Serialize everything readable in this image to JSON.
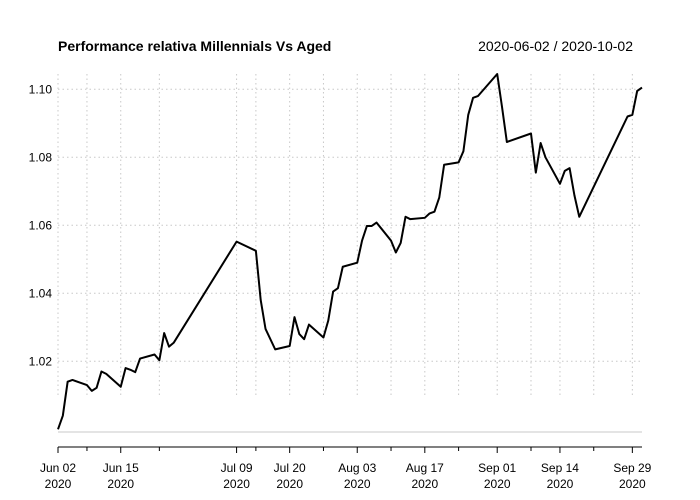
{
  "chart_data": {
    "type": "line",
    "title": "Performance relativa Millennials Vs Aged",
    "date_range": "2020-06-02 / 2020-10-02",
    "ylim": [
      0.9992,
      1.1045
    ],
    "y_ticks": [
      "1.02",
      "1.04",
      "1.06",
      "1.08",
      "1.10"
    ],
    "y_tick_values": [
      1.02,
      1.04,
      1.06,
      1.08,
      1.1
    ],
    "x_ticks": [
      {
        "date": "2020-06-02",
        "label": "Jun 02",
        "year": "2020"
      },
      {
        "date": "2020-06-15",
        "label": "Jun 15",
        "year": "2020"
      },
      {
        "date": "2020-07-09",
        "label": "Jul 09",
        "year": "2020"
      },
      {
        "date": "2020-07-20",
        "label": "Jul 20",
        "year": "2020"
      },
      {
        "date": "2020-08-03",
        "label": "Aug 03",
        "year": "2020"
      },
      {
        "date": "2020-08-17",
        "label": "Aug 17",
        "year": "2020"
      },
      {
        "date": "2020-09-01",
        "label": "Sep 01",
        "year": "2020"
      },
      {
        "date": "2020-09-14",
        "label": "Sep 14",
        "year": "2020"
      },
      {
        "date": "2020-09-29",
        "label": "Sep 29",
        "year": "2020"
      }
    ],
    "x_minor_ticks": [
      "2020-06-08",
      "2020-06-23",
      "2020-07-13",
      "2020-07-27",
      "2020-08-10",
      "2020-08-24",
      "2020-09-08",
      "2020-09-21"
    ],
    "grid": true,
    "series": [
      {
        "color": "#000000",
        "points": [
          [
            "2020-06-02",
            1.0
          ],
          [
            "2020-06-03",
            1.004
          ],
          [
            "2020-06-04",
            1.014
          ],
          [
            "2020-06-05",
            1.0145
          ],
          [
            "2020-06-08",
            1.013
          ],
          [
            "2020-06-09",
            1.0113
          ],
          [
            "2020-06-10",
            1.0122
          ],
          [
            "2020-06-11",
            1.017
          ],
          [
            "2020-06-12",
            1.0163
          ],
          [
            "2020-06-15",
            1.0125
          ],
          [
            "2020-06-16",
            1.018
          ],
          [
            "2020-06-17",
            1.0175
          ],
          [
            "2020-06-18",
            1.0168
          ],
          [
            "2020-06-19",
            1.0208
          ],
          [
            "2020-06-22",
            1.022
          ],
          [
            "2020-06-23",
            1.0203
          ],
          [
            "2020-06-24",
            1.0283
          ],
          [
            "2020-06-25",
            1.0243
          ],
          [
            "2020-06-26",
            1.0255
          ],
          [
            "2020-07-09",
            1.0552
          ],
          [
            "2020-07-13",
            1.0525
          ],
          [
            "2020-07-14",
            1.038
          ],
          [
            "2020-07-15",
            1.0295
          ],
          [
            "2020-07-17",
            1.0235
          ],
          [
            "2020-07-20",
            1.0245
          ],
          [
            "2020-07-21",
            1.033
          ],
          [
            "2020-07-22",
            1.028
          ],
          [
            "2020-07-23",
            1.0265
          ],
          [
            "2020-07-24",
            1.0308
          ],
          [
            "2020-07-27",
            1.027
          ],
          [
            "2020-07-28",
            1.032
          ],
          [
            "2020-07-29",
            1.0405
          ],
          [
            "2020-07-30",
            1.0415
          ],
          [
            "2020-07-31",
            1.0478
          ],
          [
            "2020-08-03",
            1.049
          ],
          [
            "2020-08-04",
            1.0555
          ],
          [
            "2020-08-05",
            1.0598
          ],
          [
            "2020-08-06",
            1.0598
          ],
          [
            "2020-08-07",
            1.0608
          ],
          [
            "2020-08-10",
            1.0555
          ],
          [
            "2020-08-11",
            1.052
          ],
          [
            "2020-08-12",
            1.0548
          ],
          [
            "2020-08-13",
            1.0625
          ],
          [
            "2020-08-14",
            1.0618
          ],
          [
            "2020-08-17",
            1.0622
          ],
          [
            "2020-08-18",
            1.0635
          ],
          [
            "2020-08-19",
            1.064
          ],
          [
            "2020-08-20",
            1.0682
          ],
          [
            "2020-08-21",
            1.0778
          ],
          [
            "2020-08-24",
            1.0785
          ],
          [
            "2020-08-25",
            1.0818
          ],
          [
            "2020-08-26",
            1.0925
          ],
          [
            "2020-08-27",
            1.0975
          ],
          [
            "2020-08-28",
            1.098
          ],
          [
            "2020-09-01",
            1.1045
          ],
          [
            "2020-09-02",
            1.0948
          ],
          [
            "2020-09-03",
            1.0845
          ],
          [
            "2020-09-08",
            1.087
          ],
          [
            "2020-09-09",
            1.0755
          ],
          [
            "2020-09-10",
            1.0842
          ],
          [
            "2020-09-11",
            1.08
          ],
          [
            "2020-09-14",
            1.0722
          ],
          [
            "2020-09-15",
            1.076
          ],
          [
            "2020-09-16",
            1.0768
          ],
          [
            "2020-09-17",
            1.0688
          ],
          [
            "2020-09-18",
            1.0625
          ],
          [
            "2020-09-28",
            1.092
          ],
          [
            "2020-09-29",
            1.0925
          ],
          [
            "2020-09-30",
            1.0995
          ],
          [
            "2020-10-01",
            1.1005
          ]
        ]
      }
    ]
  }
}
